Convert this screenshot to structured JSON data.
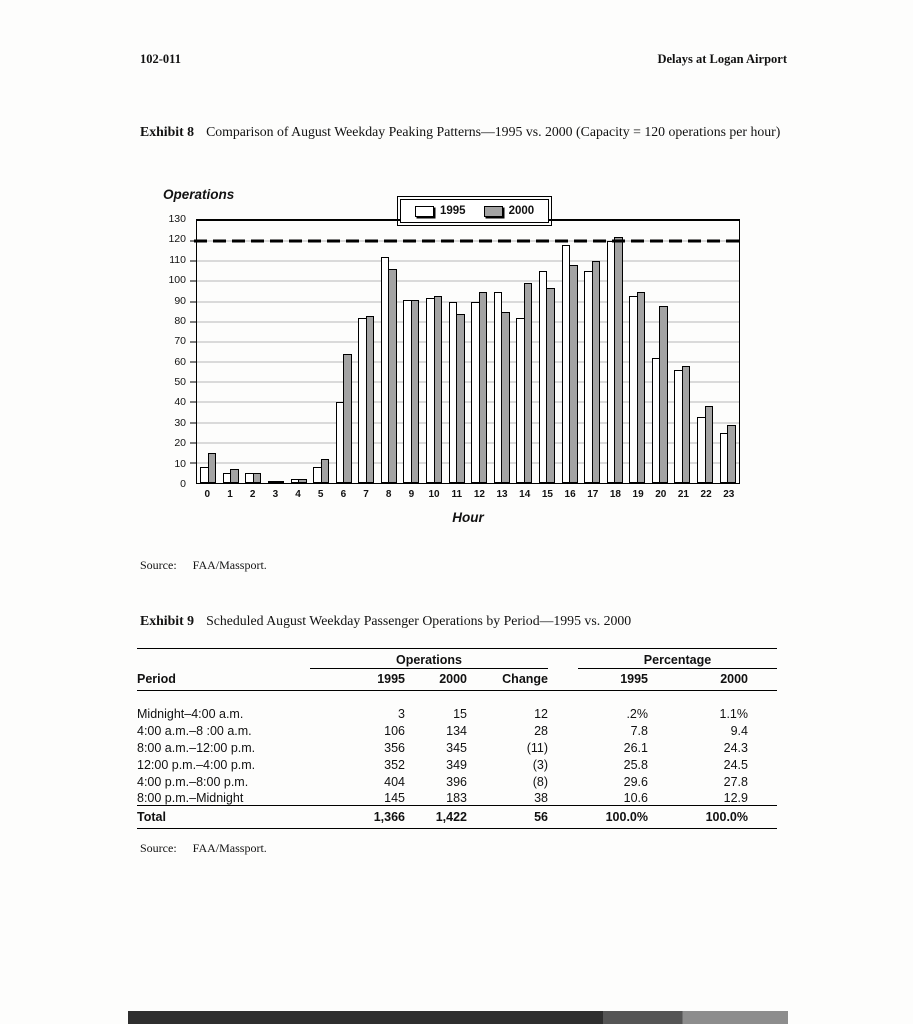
{
  "page": {
    "header_left": "102-011",
    "header_right": "Delays at Logan Airport"
  },
  "exhibit8": {
    "label": "Exhibit 8",
    "title": "Comparison of August Weekday Peaking Patterns—1995 vs. 2000 (Capacity = 120 operations per hour)",
    "source_label": "Source:",
    "source_value": "FAA/Massport."
  },
  "chart_data": {
    "type": "bar",
    "title": "",
    "ylabel": "Operations",
    "xlabel": "Hour",
    "ylim": [
      0,
      130
    ],
    "ytick_step": 10,
    "grid": true,
    "legend_position": "top-center",
    "capacity_line": 120,
    "legend": [
      "1995",
      "2000"
    ],
    "categories": [
      "0",
      "1",
      "2",
      "3",
      "4",
      "5",
      "6",
      "7",
      "8",
      "9",
      "10",
      "11",
      "12",
      "13",
      "14",
      "15",
      "16",
      "17",
      "18",
      "19",
      "20",
      "21",
      "22",
      "23"
    ],
    "series": [
      {
        "name": "1995",
        "color": "#ffffff",
        "values": [
          8,
          5,
          5,
          1,
          2,
          8,
          40,
          82,
          112,
          91,
          92,
          90,
          90,
          95,
          82,
          105,
          118,
          105,
          120,
          93,
          62,
          56,
          33,
          25
        ]
      },
      {
        "name": "2000",
        "color": "#a3a3a3",
        "values": [
          15,
          7,
          5,
          1,
          2,
          12,
          64,
          83,
          106,
          91,
          93,
          84,
          95,
          85,
          99,
          97,
          108,
          110,
          122,
          95,
          88,
          58,
          38,
          29
        ]
      }
    ]
  },
  "exhibit9": {
    "label": "Exhibit 9",
    "title": "Scheduled August Weekday Passenger Operations by Period—1995 vs. 2000",
    "source_label": "Source:",
    "source_value": "FAA/Massport.",
    "table": {
      "group_headers": {
        "operations": "Operations",
        "percentage": "Percentage"
      },
      "col_headers": {
        "period": "Period",
        "ops_1995": "1995",
        "ops_2000": "2000",
        "change": "Change",
        "pct_1995": "1995",
        "pct_2000": "2000"
      },
      "rows": [
        {
          "period": "Midnight–4:00 a.m.",
          "ops_1995": "3",
          "ops_2000": "15",
          "change": "12",
          "pct_1995": ".2%",
          "pct_2000": "1.1%"
        },
        {
          "period": "4:00 a.m.–8 :00 a.m.",
          "ops_1995": "106",
          "ops_2000": "134",
          "change": "28",
          "pct_1995": "7.8",
          "pct_2000": "9.4"
        },
        {
          "period": "8:00 a.m.–12:00 p.m.",
          "ops_1995": "356",
          "ops_2000": "345",
          "change": "(11)",
          "pct_1995": "26.1",
          "pct_2000": "24.3"
        },
        {
          "period": "12:00 p.m.–4:00 p.m.",
          "ops_1995": "352",
          "ops_2000": "349",
          "change": "(3)",
          "pct_1995": "25.8",
          "pct_2000": "24.5"
        },
        {
          "period": "4:00 p.m.–8:00 p.m.",
          "ops_1995": "404",
          "ops_2000": "396",
          "change": "(8)",
          "pct_1995": "29.6",
          "pct_2000": "27.8"
        },
        {
          "period": "8:00 p.m.–Midnight",
          "ops_1995": "145",
          "ops_2000": "183",
          "change": "38",
          "pct_1995": "10.6",
          "pct_2000": "12.9"
        }
      ],
      "total": {
        "period": "Total",
        "ops_1995": "1,366",
        "ops_2000": "1,422",
        "change": "56",
        "pct_1995": "100.0%",
        "pct_2000": "100.0%"
      }
    }
  }
}
